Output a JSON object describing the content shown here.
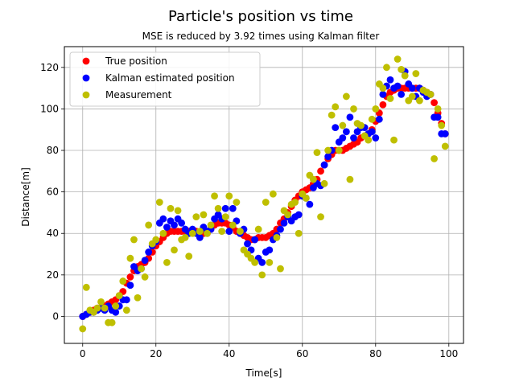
{
  "chart_data": {
    "type": "scatter",
    "title": "Particle's position vs time",
    "subtitle": "MSE is reduced by 3.92 times using Kalman filter",
    "xlabel": "Time[s]",
    "ylabel": "Distance[m]",
    "xlim": [
      -5,
      104
    ],
    "ylim": [
      -13,
      130
    ],
    "xticks": [
      0,
      20,
      40,
      60,
      80,
      100
    ],
    "yticks": [
      0,
      20,
      40,
      60,
      80,
      100,
      120
    ],
    "grid": true,
    "legend_position": "top-left",
    "series": [
      {
        "name": "True position",
        "color": "#ff0000",
        "x": [
          0,
          1,
          2,
          3,
          4,
          5,
          6,
          7,
          8,
          9,
          10,
          11,
          12,
          13,
          14,
          15,
          16,
          17,
          18,
          19,
          20,
          21,
          22,
          23,
          24,
          25,
          26,
          27,
          28,
          29,
          30,
          31,
          32,
          33,
          34,
          35,
          36,
          37,
          38,
          39,
          40,
          41,
          42,
          43,
          44,
          45,
          46,
          47,
          48,
          49,
          50,
          51,
          52,
          53,
          54,
          55,
          56,
          57,
          58,
          59,
          60,
          61,
          62,
          63,
          64,
          65,
          66,
          67,
          68,
          69,
          70,
          71,
          72,
          73,
          74,
          75,
          76,
          77,
          78,
          79,
          80,
          81,
          82,
          83,
          84,
          85,
          86,
          87,
          88,
          89,
          90,
          91,
          92,
          93,
          94,
          95,
          96,
          97,
          98,
          99
        ],
        "y": [
          0,
          1,
          2,
          3,
          4,
          4,
          5,
          6,
          7,
          8,
          10,
          12,
          16,
          19,
          22,
          24,
          25,
          26,
          28,
          31,
          34,
          36,
          38,
          40,
          41,
          41,
          41,
          41,
          41,
          41,
          41,
          41,
          40,
          40,
          40,
          42,
          44,
          45,
          45,
          45,
          44,
          43,
          41,
          40,
          39,
          38,
          37,
          37,
          38,
          38,
          38,
          39,
          40,
          42,
          45,
          47,
          50,
          53,
          56,
          58,
          60,
          61,
          62,
          64,
          66,
          70,
          73,
          76,
          78,
          80,
          80,
          80,
          81,
          82,
          83,
          84,
          86,
          87,
          88,
          90,
          94,
          98,
          102,
          106,
          108,
          109,
          110,
          110,
          110,
          110,
          110,
          110,
          110,
          109,
          108,
          107,
          103,
          98,
          93,
          88
        ]
      },
      {
        "name": "Kalman estimated position",
        "color": "#0000ff",
        "x": [
          0,
          1,
          2,
          3,
          4,
          5,
          6,
          7,
          8,
          9,
          10,
          11,
          12,
          13,
          14,
          15,
          16,
          17,
          18,
          19,
          20,
          21,
          22,
          23,
          24,
          25,
          26,
          27,
          28,
          29,
          30,
          31,
          32,
          33,
          34,
          35,
          36,
          37,
          38,
          39,
          40,
          41,
          42,
          43,
          44,
          45,
          46,
          47,
          48,
          49,
          50,
          51,
          52,
          53,
          54,
          55,
          56,
          57,
          58,
          59,
          60,
          61,
          62,
          63,
          64,
          65,
          66,
          67,
          68,
          69,
          70,
          71,
          72,
          73,
          74,
          75,
          76,
          77,
          78,
          79,
          80,
          81,
          82,
          83,
          84,
          85,
          86,
          87,
          88,
          89,
          90,
          91,
          92,
          93,
          94,
          95,
          96,
          97,
          98,
          99
        ],
        "y": [
          0,
          1,
          2,
          2,
          3,
          4,
          3,
          5,
          3,
          2,
          5,
          8,
          8,
          15,
          24,
          22,
          23,
          27,
          31,
          34,
          36,
          45,
          47,
          43,
          46,
          44,
          47,
          45,
          42,
          40,
          42,
          40,
          38,
          43,
          41,
          42,
          47,
          49,
          47,
          52,
          41,
          52,
          46,
          40,
          42,
          35,
          32,
          37,
          28,
          26,
          31,
          32,
          37,
          39,
          42,
          45,
          48,
          46,
          48,
          49,
          58,
          57,
          54,
          62,
          64,
          63,
          73,
          77,
          80,
          91,
          84,
          86,
          89,
          96,
          86,
          89,
          91,
          91,
          88,
          89,
          86,
          95,
          107,
          111,
          114,
          110,
          111,
          107,
          118,
          112,
          110,
          106,
          110,
          108,
          106,
          107,
          96,
          96,
          88,
          88
        ]
      },
      {
        "name": "Measurement",
        "color": "#bfbf00",
        "x": [
          0,
          1,
          2,
          3,
          4,
          5,
          6,
          7,
          8,
          9,
          10,
          11,
          12,
          13,
          14,
          15,
          16,
          17,
          18,
          19,
          20,
          21,
          22,
          23,
          24,
          25,
          26,
          27,
          28,
          29,
          30,
          31,
          32,
          33,
          34,
          35,
          36,
          37,
          38,
          39,
          40,
          41,
          42,
          43,
          44,
          45,
          46,
          47,
          48,
          49,
          50,
          51,
          52,
          53,
          54,
          55,
          56,
          57,
          58,
          59,
          60,
          61,
          62,
          63,
          64,
          65,
          66,
          67,
          68,
          69,
          70,
          71,
          72,
          73,
          74,
          75,
          76,
          77,
          78,
          79,
          80,
          81,
          82,
          83,
          84,
          85,
          86,
          87,
          88,
          89,
          90,
          91,
          92,
          93,
          94,
          95,
          96,
          97,
          98,
          99
        ],
        "y": [
          -6,
          14,
          3,
          2,
          4,
          7,
          4,
          -3,
          -3,
          5,
          10,
          17,
          3,
          28,
          37,
          9,
          23,
          19,
          44,
          35,
          37,
          55,
          40,
          26,
          52,
          32,
          51,
          37,
          38,
          29,
          40,
          48,
          41,
          49,
          40,
          44,
          58,
          52,
          41,
          48,
          58,
          44,
          55,
          41,
          32,
          30,
          28,
          26,
          42,
          20,
          55,
          26,
          59,
          38,
          23,
          51,
          49,
          54,
          55,
          40,
          59,
          57,
          68,
          66,
          79,
          48,
          64,
          80,
          97,
          101,
          80,
          92,
          106,
          66,
          100,
          93,
          92,
          87,
          85,
          95,
          100,
          112,
          110,
          120,
          105,
          85,
          124,
          119,
          116,
          104,
          106,
          117,
          104,
          109,
          108,
          107,
          76,
          100,
          92,
          82
        ]
      }
    ]
  }
}
